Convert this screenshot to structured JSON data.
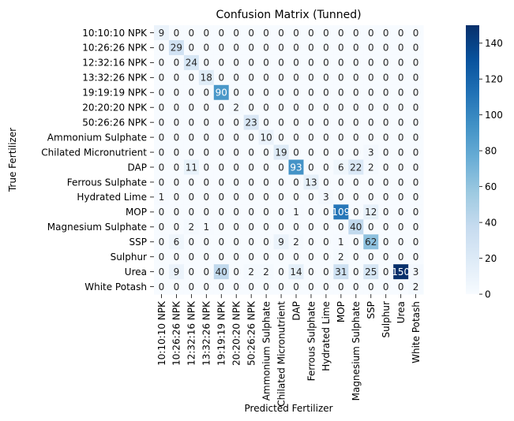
{
  "chart_data": {
    "type": "heatmap",
    "title": "Confusion Matrix (Tunned)",
    "xlabel": "Predicted Fertilizer",
    "ylabel": "True Fertilizer",
    "categories": [
      "10:10:10 NPK",
      "10:26:26 NPK",
      "12:32:16 NPK",
      "13:32:26 NPK",
      "19:19:19 NPK",
      "20:20:20 NPK",
      "50:26:26 NPK",
      "Ammonium Sulphate",
      "Chilated Micronutrient",
      "DAP",
      "Ferrous Sulphate",
      "Hydrated Lime",
      "MOP",
      "Magnesium Sulphate",
      "SSP",
      "Sulphur",
      "Urea",
      "White Potash"
    ],
    "matrix": [
      [
        9,
        0,
        0,
        0,
        0,
        0,
        0,
        0,
        0,
        0,
        0,
        0,
        0,
        0,
        0,
        0,
        0,
        0
      ],
      [
        0,
        29,
        0,
        0,
        0,
        0,
        0,
        0,
        0,
        0,
        0,
        0,
        0,
        0,
        0,
        0,
        0,
        0
      ],
      [
        0,
        0,
        24,
        0,
        0,
        0,
        0,
        0,
        0,
        0,
        0,
        0,
        0,
        0,
        0,
        0,
        0,
        0
      ],
      [
        0,
        0,
        0,
        18,
        0,
        0,
        0,
        0,
        0,
        0,
        0,
        0,
        0,
        0,
        0,
        0,
        0,
        0
      ],
      [
        0,
        0,
        0,
        0,
        90,
        0,
        0,
        0,
        0,
        0,
        0,
        0,
        0,
        0,
        0,
        0,
        0,
        0
      ],
      [
        0,
        0,
        0,
        0,
        0,
        2,
        0,
        0,
        0,
        0,
        0,
        0,
        0,
        0,
        0,
        0,
        0,
        0
      ],
      [
        0,
        0,
        0,
        0,
        0,
        0,
        23,
        0,
        0,
        0,
        0,
        0,
        0,
        0,
        0,
        0,
        0,
        0
      ],
      [
        0,
        0,
        0,
        0,
        0,
        0,
        0,
        10,
        0,
        0,
        0,
        0,
        0,
        0,
        0,
        0,
        0,
        0
      ],
      [
        0,
        0,
        0,
        0,
        0,
        0,
        0,
        0,
        19,
        0,
        0,
        0,
        0,
        0,
        3,
        0,
        0,
        0
      ],
      [
        0,
        0,
        11,
        0,
        0,
        0,
        0,
        0,
        0,
        93,
        0,
        0,
        6,
        22,
        2,
        0,
        0,
        0
      ],
      [
        0,
        0,
        0,
        0,
        0,
        0,
        0,
        0,
        0,
        0,
        13,
        0,
        0,
        0,
        0,
        0,
        0,
        0
      ],
      [
        1,
        0,
        0,
        0,
        0,
        0,
        0,
        0,
        0,
        0,
        0,
        3,
        0,
        0,
        0,
        0,
        0,
        0
      ],
      [
        0,
        0,
        0,
        0,
        0,
        0,
        0,
        0,
        0,
        1,
        0,
        0,
        109,
        0,
        12,
        0,
        0,
        0
      ],
      [
        0,
        0,
        2,
        1,
        0,
        0,
        0,
        0,
        0,
        0,
        0,
        0,
        0,
        40,
        0,
        0,
        0,
        0
      ],
      [
        0,
        6,
        0,
        0,
        0,
        0,
        0,
        0,
        9,
        2,
        0,
        0,
        1,
        0,
        62,
        0,
        0,
        0
      ],
      [
        0,
        0,
        0,
        0,
        0,
        0,
        0,
        0,
        0,
        0,
        0,
        0,
        2,
        0,
        0,
        0,
        0,
        0
      ],
      [
        0,
        9,
        0,
        0,
        40,
        0,
        2,
        2,
        0,
        14,
        0,
        0,
        31,
        0,
        25,
        0,
        150,
        3
      ],
      [
        0,
        0,
        0,
        0,
        0,
        0,
        0,
        0,
        0,
        0,
        0,
        0,
        0,
        0,
        0,
        0,
        0,
        2
      ]
    ],
    "colorbar": {
      "min": 0,
      "max": 150,
      "ticks": [
        "0",
        "20",
        "40",
        "60",
        "80",
        "100",
        "120",
        "140"
      ],
      "colormap": "Blues"
    }
  }
}
